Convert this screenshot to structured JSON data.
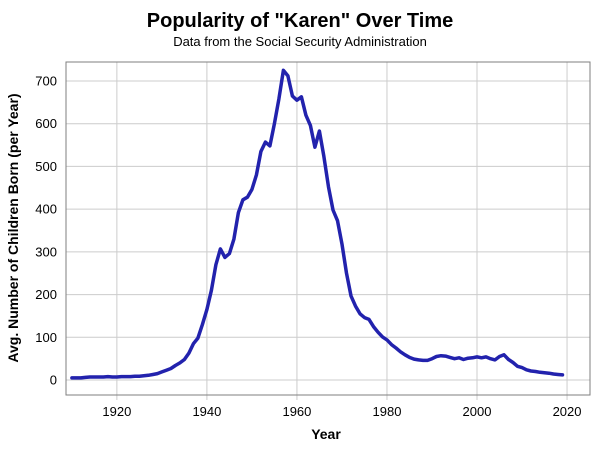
{
  "chart_data": {
    "type": "line",
    "title": "Popularity of \"Karen\" Over Time",
    "subtitle": "Data from the Social Security Administration",
    "xlabel": "Year",
    "ylabel": "Avg. Number of Children Born (per Year)",
    "x_ticks": [
      1920,
      1940,
      1960,
      1980,
      2000,
      2020
    ],
    "y_ticks": [
      0,
      100,
      200,
      300,
      400,
      500,
      600,
      700
    ],
    "xlim": [
      1908.7,
      2025.1
    ],
    "ylim": [
      -35.1,
      744.5
    ],
    "grid_on": true,
    "legend": "none",
    "line_color": "#2222ad",
    "grid_color": "#cccccc",
    "border_color": "#7f7f7f",
    "background_color": "#ffffff",
    "series": [
      {
        "name": "Karen",
        "x": [
          1910,
          1911,
          1912,
          1913,
          1914,
          1915,
          1916,
          1917,
          1918,
          1919,
          1920,
          1921,
          1922,
          1923,
          1924,
          1925,
          1926,
          1927,
          1928,
          1929,
          1930,
          1931,
          1932,
          1933,
          1934,
          1935,
          1936,
          1937,
          1938,
          1939,
          1940,
          1941,
          1942,
          1943,
          1944,
          1945,
          1946,
          1947,
          1948,
          1949,
          1950,
          1951,
          1952,
          1953,
          1954,
          1955,
          1956,
          1957,
          1958,
          1959,
          1960,
          1961,
          1962,
          1963,
          1964,
          1965,
          1966,
          1967,
          1968,
          1969,
          1970,
          1971,
          1972,
          1973,
          1974,
          1975,
          1976,
          1977,
          1978,
          1979,
          1980,
          1981,
          1982,
          1983,
          1984,
          1985,
          1986,
          1987,
          1988,
          1989,
          1990,
          1991,
          1992,
          1993,
          1994,
          1995,
          1996,
          1997,
          1998,
          1999,
          2000,
          2001,
          2002,
          2003,
          2004,
          2005,
          2006,
          2007,
          2008,
          2009,
          2010,
          2011,
          2012,
          2013,
          2014,
          2015,
          2016,
          2017,
          2018,
          2019
        ],
        "values": [
          5,
          5,
          5,
          6,
          7,
          7,
          7,
          7,
          8,
          7,
          7,
          8,
          8,
          8,
          9,
          9,
          10,
          11,
          13,
          15,
          19,
          23,
          27,
          34,
          40,
          48,
          63,
          85,
          98,
          130,
          165,
          210,
          270,
          307,
          287,
          296,
          330,
          392,
          422,
          428,
          446,
          480,
          535,
          557,
          548,
          600,
          658,
          725,
          712,
          665,
          655,
          663,
          620,
          596,
          545,
          583,
          523,
          452,
          398,
          373,
          318,
          250,
          197,
          173,
          155,
          146,
          142,
          125,
          112,
          101,
          94,
          83,
          75,
          66,
          59,
          53,
          49,
          47,
          46,
          46,
          50,
          55,
          57,
          56,
          53,
          50,
          52,
          48,
          51,
          52,
          54,
          52,
          54,
          50,
          47,
          55,
          59,
          48,
          41,
          32,
          29,
          24,
          21,
          20,
          18,
          17,
          16,
          14,
          13,
          12
        ]
      }
    ]
  }
}
